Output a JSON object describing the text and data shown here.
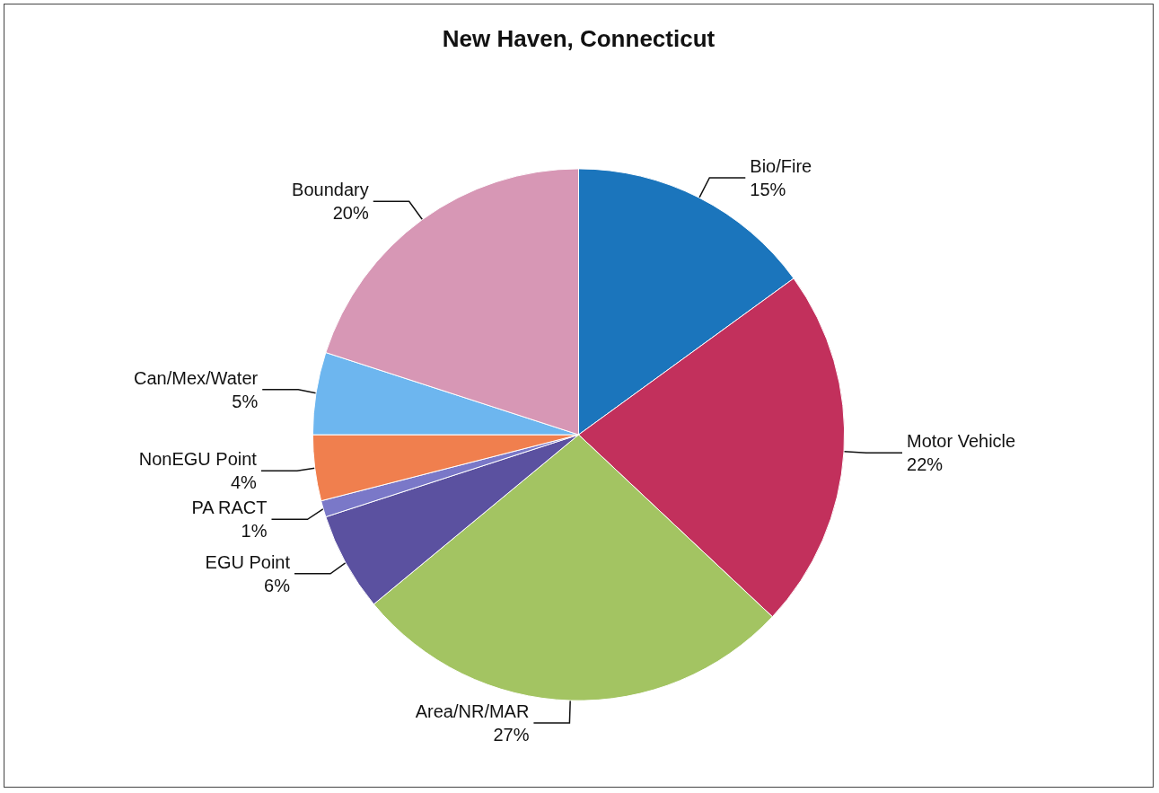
{
  "chart_data": {
    "type": "pie",
    "title": "New Haven, Connecticut",
    "categories": [
      "Bio/Fire",
      "Motor Vehicle",
      "Area/NR/MAR",
      "EGU Point",
      "PA RACT",
      "NonEGU Point",
      "Can/Mex/Water",
      "Boundary"
    ],
    "values": [
      15,
      22,
      27,
      6,
      1,
      4,
      5,
      20
    ],
    "value_labels": [
      "15%",
      "22%",
      "27%",
      "6%",
      "1%",
      "4%",
      "5%",
      "20%"
    ],
    "colors": [
      "#1b75bc",
      "#c2305c",
      "#a3c462",
      "#5b51a0",
      "#7a78c8",
      "#f07f4e",
      "#6db6ef",
      "#d797b5"
    ],
    "legend": false
  }
}
